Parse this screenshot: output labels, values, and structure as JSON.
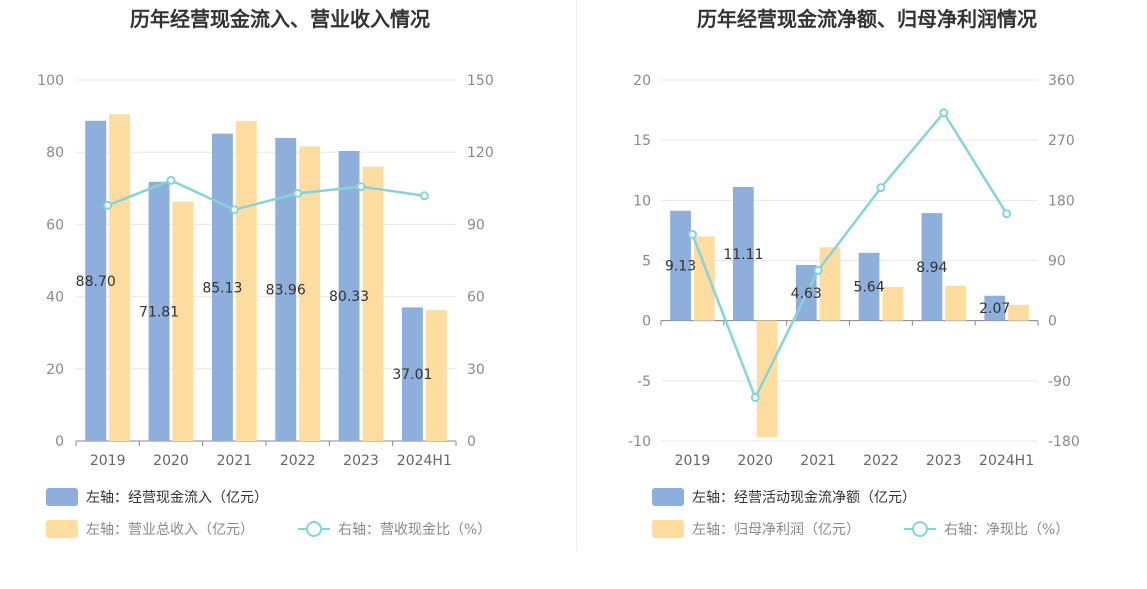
{
  "chart_data": [
    {
      "type": "bar",
      "title": "历年经营现金流入、营业收入情况",
      "categories": [
        "2019",
        "2020",
        "2021",
        "2022",
        "2023",
        "2024H1"
      ],
      "left_axis": {
        "range": [
          0,
          100
        ],
        "ticks": [
          "0",
          "20",
          "40",
          "60",
          "80",
          "100"
        ]
      },
      "right_axis": {
        "range": [
          0,
          150
        ],
        "ticks": [
          "0",
          "30",
          "60",
          "90",
          "120",
          "150"
        ]
      },
      "series": [
        {
          "name": "左轴：经营现金流入（亿元）",
          "axis": "left",
          "kind": "bar",
          "color": "#8eaedb",
          "values": [
            88.7,
            71.81,
            85.13,
            83.96,
            80.33,
            37.01
          ],
          "labels": [
            "88.70",
            "71.81",
            "85.13",
            "83.96",
            "80.33",
            "37.01"
          ]
        },
        {
          "name": "左轴：营业总收入（亿元）",
          "axis": "left",
          "kind": "bar",
          "color": "#ffdca0",
          "values": [
            90.5,
            66.3,
            88.6,
            81.6,
            76.0,
            36.3
          ]
        },
        {
          "name": "右轴：营收现金比（%）",
          "axis": "right",
          "kind": "line",
          "color": "#86d4d8",
          "values": [
            97.9,
            108.3,
            96.1,
            102.9,
            105.7,
            101.9
          ]
        }
      ],
      "grid": true,
      "legend_placement": "bottom-left"
    },
    {
      "type": "bar",
      "title": "历年经营现金流净额、归母净利润情况",
      "categories": [
        "2019",
        "2020",
        "2021",
        "2022",
        "2023",
        "2024H1"
      ],
      "left_axis": {
        "range": [
          -10,
          20
        ],
        "ticks": [
          "-10",
          "-5",
          "0",
          "5",
          "10",
          "15",
          "20"
        ]
      },
      "right_axis": {
        "range": [
          -180,
          360
        ],
        "ticks": [
          "-180",
          "-90",
          "0",
          "90",
          "180",
          "270",
          "360"
        ]
      },
      "series": [
        {
          "name": "左轴：经营活动现金流净额（亿元）",
          "axis": "left",
          "kind": "bar",
          "color": "#8eaedb",
          "values": [
            9.13,
            11.11,
            4.63,
            5.64,
            8.94,
            2.07
          ],
          "labels": [
            "9.13",
            "11.11",
            "4.63",
            "5.64",
            "8.94",
            "2.07"
          ]
        },
        {
          "name": "左轴：归母净利润（亿元）",
          "axis": "left",
          "kind": "bar",
          "color": "#ffdca0",
          "values": [
            7.0,
            -9.7,
            6.1,
            2.8,
            2.9,
            1.3
          ]
        },
        {
          "name": "右轴：净现比（%）",
          "axis": "right",
          "kind": "line",
          "color": "#86d4d8",
          "values": [
            129,
            -115,
            75,
            199,
            311,
            160
          ]
        }
      ],
      "grid": true,
      "legend_placement": "bottom-left"
    }
  ]
}
